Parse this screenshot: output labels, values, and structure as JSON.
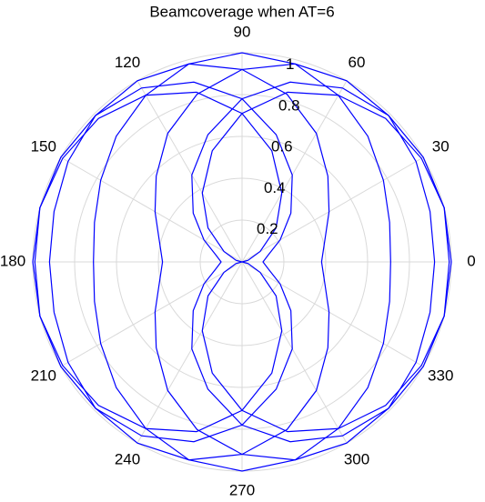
{
  "chart_data": {
    "type": "polar-line",
    "title": "Beamcoverage when AT=6",
    "theta": [
      0,
      15,
      30,
      45,
      60,
      75,
      90,
      105,
      120,
      135,
      150,
      165,
      180,
      195,
      210,
      225,
      240,
      255,
      270,
      285,
      300,
      315,
      330,
      345
    ],
    "series": [
      {
        "color": "#0000ff",
        "values": [
          1,
          1,
          0.99,
          0.97,
          0.92,
          0.84,
          0.71,
          0.55,
          0.38,
          0.23,
          0.1,
          0.03,
          0,
          0.03,
          0.1,
          0.23,
          0.38,
          0.55,
          0.71,
          0.84,
          0.92,
          0.97,
          0.99,
          1
        ]
      },
      {
        "color": "#0000ff",
        "values": [
          0.99,
          1,
          1,
          0.99,
          0.96,
          0.89,
          0.78,
          0.63,
          0.48,
          0.33,
          0.21,
          0.13,
          0.1,
          0.13,
          0.21,
          0.33,
          0.48,
          0.63,
          0.78,
          0.89,
          0.96,
          0.99,
          1,
          1
        ]
      },
      {
        "color": "#0000ff",
        "values": [
          0.92,
          0.93,
          0.96,
          0.99,
          1,
          0.98,
          0.92,
          0.83,
          0.71,
          0.58,
          0.48,
          0.41,
          0.38,
          0.41,
          0.48,
          0.58,
          0.71,
          0.83,
          0.92,
          0.98,
          1,
          0.99,
          0.96,
          0.93
        ]
      },
      {
        "color": "#0000ff",
        "values": [
          0.71,
          0.73,
          0.78,
          0.85,
          0.92,
          0.98,
          1,
          0.98,
          0.92,
          0.85,
          0.78,
          0.73,
          0.71,
          0.73,
          0.78,
          0.85,
          0.92,
          0.98,
          1,
          0.98,
          0.92,
          0.85,
          0.78,
          0.73
        ]
      },
      {
        "color": "#0000ff",
        "values": [
          0.38,
          0.41,
          0.48,
          0.58,
          0.71,
          0.83,
          0.92,
          0.98,
          1,
          0.99,
          0.96,
          0.93,
          0.92,
          0.93,
          0.96,
          0.99,
          1,
          0.98,
          0.92,
          0.83,
          0.71,
          0.58,
          0.48,
          0.41
        ]
      },
      {
        "color": "#0000ff",
        "values": [
          0.1,
          0.13,
          0.21,
          0.33,
          0.48,
          0.63,
          0.78,
          0.89,
          0.96,
          0.99,
          1,
          1,
          0.99,
          1,
          1,
          0.99,
          0.96,
          0.89,
          0.78,
          0.63,
          0.48,
          0.33,
          0.21,
          0.13
        ]
      },
      {
        "color": "#0000ff",
        "values": [
          0,
          0.03,
          0.1,
          0.23,
          0.38,
          0.55,
          0.71,
          0.84,
          0.92,
          0.97,
          0.99,
          1,
          1,
          1,
          0.99,
          0.97,
          0.92,
          0.84,
          0.71,
          0.55,
          0.38,
          0.23,
          0.1,
          0.03
        ]
      }
    ],
    "rlim": [
      0,
      1
    ],
    "rticks": [
      0.2,
      0.4,
      0.6,
      0.8,
      1
    ],
    "thetaticks": [
      0,
      30,
      60,
      90,
      120,
      150,
      180,
      210,
      240,
      270,
      300,
      330
    ],
    "grid": true
  }
}
